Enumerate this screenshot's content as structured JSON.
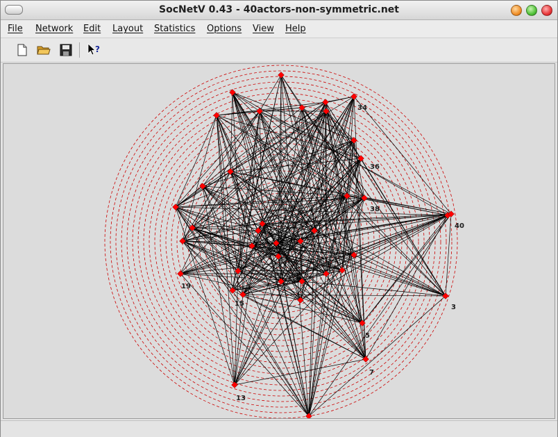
{
  "window": {
    "title": "SocNetV 0.43 - 40actors-non-symmetric.net"
  },
  "menubar": {
    "items": [
      "File",
      "Network",
      "Edit",
      "Layout",
      "Statistics",
      "Options",
      "View",
      "Help"
    ]
  },
  "toolbar": {
    "buttons": [
      {
        "name": "new-file-icon"
      },
      {
        "name": "open-folder-icon"
      },
      {
        "name": "save-disk-icon"
      },
      {
        "name": "whats-this-help-icon"
      }
    ]
  },
  "graph": {
    "edge_color": "#000000",
    "node_color": "#ff0000",
    "circle_color": "#cc0000",
    "labels": {
      "n34": "34",
      "n36": "36",
      "n38": "38",
      "n40": "40",
      "n19": "19",
      "n3": "3",
      "n7": "7",
      "n13": "13",
      "n15": "15",
      "n5": "5"
    }
  },
  "statusbar": {
    "text": ""
  }
}
